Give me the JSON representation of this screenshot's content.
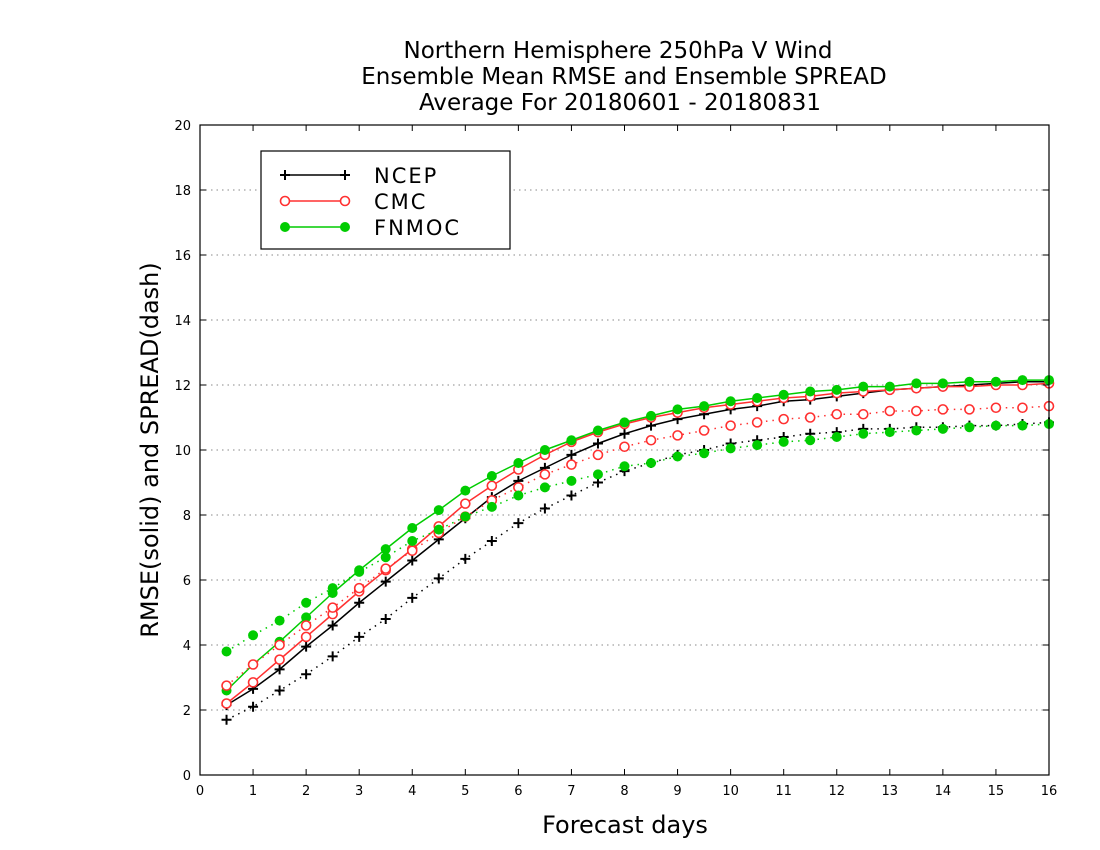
{
  "chart_data": {
    "type": "line",
    "title_lines": [
      "Northern Hemisphere 250hPa V Wind",
      "Ensemble Mean RMSE and Ensemble SPREAD",
      "Average For 20180601 - 20180831"
    ],
    "xlabel": "Forecast days",
    "ylabel": "RMSE(solid) and SPREAD(dash)",
    "xlim": [
      0,
      16
    ],
    "ylim": [
      0,
      20
    ],
    "xticks": [
      "0",
      "1",
      "2",
      "3",
      "4",
      "5",
      "6",
      "7",
      "8",
      "9",
      "10",
      "11",
      "12",
      "13",
      "14",
      "15",
      "16"
    ],
    "yticks": [
      "0",
      "2",
      "4",
      "6",
      "8",
      "10",
      "12",
      "14",
      "16",
      "18",
      "20"
    ],
    "grid": "dotted horizontal",
    "legend_position": "top-left",
    "x": [
      0.5,
      1,
      1.5,
      2,
      2.5,
      3,
      3.5,
      4,
      4.5,
      5,
      5.5,
      6,
      6.5,
      7,
      7.5,
      8,
      8.5,
      9,
      9.5,
      10,
      10.5,
      11,
      11.5,
      12,
      12.5,
      13,
      13.5,
      14,
      14.5,
      15,
      15.5,
      16
    ],
    "series": [
      {
        "name": "NCEP",
        "color": "#000000",
        "marker": "plus",
        "style": "solid",
        "values": [
          2.15,
          2.65,
          3.25,
          3.95,
          4.6,
          5.3,
          5.95,
          6.6,
          7.25,
          7.9,
          8.55,
          9.05,
          9.45,
          9.85,
          10.2,
          10.5,
          10.75,
          10.95,
          11.1,
          11.25,
          11.35,
          11.5,
          11.55,
          11.65,
          11.75,
          11.85,
          11.9,
          11.95,
          12.0,
          12.05,
          12.1,
          12.1
        ]
      },
      {
        "name": "CMC",
        "color": "#ff3030",
        "marker": "open-circle",
        "style": "solid",
        "values": [
          2.2,
          2.85,
          3.55,
          4.25,
          4.95,
          5.65,
          6.3,
          6.95,
          7.65,
          8.35,
          8.9,
          9.4,
          9.85,
          10.25,
          10.55,
          10.8,
          11.0,
          11.15,
          11.3,
          11.4,
          11.5,
          11.6,
          11.65,
          11.75,
          11.8,
          11.85,
          11.9,
          11.95,
          11.95,
          12.0,
          12.0,
          12.05
        ]
      },
      {
        "name": "FNMOC",
        "color": "#00cc00",
        "marker": "filled-circle",
        "style": "solid",
        "values": [
          2.6,
          3.4,
          4.1,
          4.85,
          5.6,
          6.3,
          6.95,
          7.6,
          8.15,
          8.75,
          9.2,
          9.6,
          10.0,
          10.3,
          10.6,
          10.85,
          11.05,
          11.25,
          11.35,
          11.5,
          11.6,
          11.7,
          11.8,
          11.85,
          11.95,
          11.95,
          12.05,
          12.05,
          12.1,
          12.1,
          12.15,
          12.15
        ]
      },
      {
        "name": "",
        "color": "#000000",
        "marker": "plus",
        "style": "dotted",
        "values": [
          1.7,
          2.1,
          2.6,
          3.1,
          3.65,
          4.25,
          4.8,
          5.45,
          6.05,
          6.65,
          7.2,
          7.75,
          8.2,
          8.6,
          9.0,
          9.35,
          9.6,
          9.85,
          10.0,
          10.2,
          10.3,
          10.4,
          10.5,
          10.55,
          10.65,
          10.65,
          10.7,
          10.7,
          10.75,
          10.75,
          10.8,
          10.85
        ]
      },
      {
        "name": "",
        "color": "#ff3030",
        "marker": "open-circle",
        "style": "dotted",
        "values": [
          2.75,
          3.4,
          4.0,
          4.6,
          5.15,
          5.75,
          6.35,
          6.9,
          7.45,
          7.95,
          8.45,
          8.85,
          9.25,
          9.55,
          9.85,
          10.1,
          10.3,
          10.45,
          10.6,
          10.75,
          10.85,
          10.95,
          11.0,
          11.1,
          11.1,
          11.2,
          11.2,
          11.25,
          11.25,
          11.3,
          11.3,
          11.35
        ]
      },
      {
        "name": "",
        "color": "#00cc00",
        "marker": "filled-circle",
        "style": "dotted",
        "values": [
          3.8,
          4.3,
          4.75,
          5.3,
          5.75,
          6.25,
          6.7,
          7.2,
          7.55,
          7.95,
          8.25,
          8.6,
          8.85,
          9.05,
          9.25,
          9.5,
          9.6,
          9.8,
          9.9,
          10.05,
          10.15,
          10.25,
          10.3,
          10.4,
          10.5,
          10.55,
          10.6,
          10.65,
          10.7,
          10.75,
          10.75,
          10.8
        ]
      }
    ]
  }
}
